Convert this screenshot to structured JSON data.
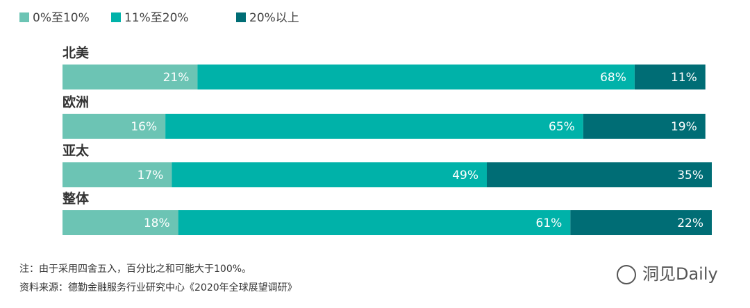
{
  "chart_data": {
    "type": "stacked_bar_horizontal",
    "categories": [
      "北美",
      "欧洲",
      "亚太",
      "整体"
    ],
    "series": [
      {
        "name": "0%至10%",
        "color": "#6cc4b4",
        "values": [
          21,
          16,
          17,
          18
        ],
        "value_labels": [
          "21%",
          "16%",
          "17%",
          "18%"
        ]
      },
      {
        "name": "11%至20%",
        "color": "#00b2a9",
        "values": [
          68,
          65,
          49,
          61
        ],
        "value_labels": [
          "68%",
          "65%",
          "49%",
          "61%"
        ]
      },
      {
        "name": "20%以上",
        "color": "#006d75",
        "values": [
          11,
          19,
          35,
          22
        ],
        "value_labels": [
          "11%",
          "19%",
          "35%",
          "22%"
        ]
      }
    ],
    "legend": "top-left",
    "notes": [
      "注：由于采用四舍五入，百分比之和可能大于100%。",
      "资料来源：德勤金融服务行业研究中心《2020年全球展望调研》"
    ],
    "watermark": "洞见Daily"
  }
}
